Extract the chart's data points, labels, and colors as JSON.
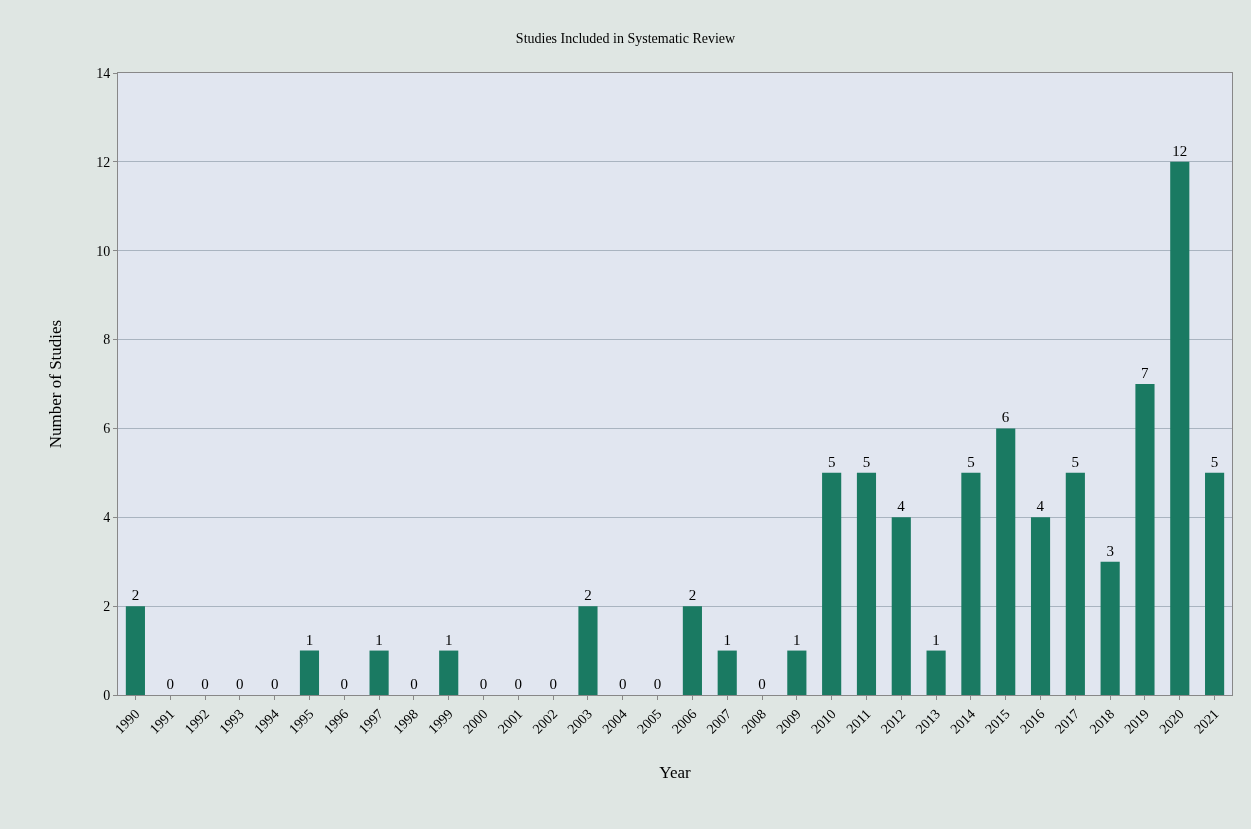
{
  "chart_data": {
    "type": "bar",
    "title": "Studies Included in Systematic Review",
    "xlabel": "Year",
    "ylabel": "Number of Studies",
    "categories": [
      "1990",
      "1991",
      "1992",
      "1993",
      "1994",
      "1995",
      "1996",
      "1997",
      "1998",
      "1999",
      "2000",
      "2001",
      "2002",
      "2003",
      "2004",
      "2005",
      "2006",
      "2007",
      "2008",
      "2009",
      "2010",
      "2011",
      "2012",
      "2013",
      "2014",
      "2015",
      "2016",
      "2017",
      "2018",
      "2019",
      "2020",
      "2021"
    ],
    "values": [
      2,
      0,
      0,
      0,
      0,
      1,
      0,
      1,
      0,
      1,
      0,
      0,
      0,
      2,
      0,
      0,
      2,
      1,
      0,
      1,
      5,
      5,
      4,
      1,
      5,
      6,
      4,
      5,
      3,
      7,
      12,
      5
    ],
    "color": "#1a7a62",
    "ylim": [
      0,
      14
    ],
    "yticks": [
      0,
      2,
      4,
      6,
      8,
      10,
      12,
      14
    ],
    "grid": "y",
    "data_labels": true
  }
}
